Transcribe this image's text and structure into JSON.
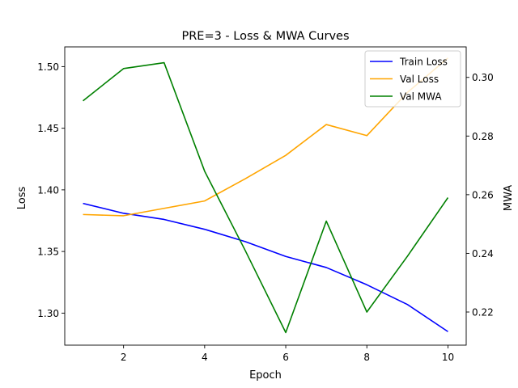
{
  "chart_data": {
    "type": "line",
    "title": "PRE=3 - Loss & MWA Curves",
    "xlabel": "Epoch",
    "ylabel": "Loss",
    "y2label": "MWA",
    "x": [
      1,
      2,
      3,
      4,
      5,
      6,
      7,
      8,
      9,
      10
    ],
    "x_ticks": [
      "2",
      "4",
      "6",
      "8",
      "10"
    ],
    "x_tick_values": [
      2,
      4,
      6,
      8,
      10
    ],
    "xlim": [
      0.55,
      10.45
    ],
    "ylim": [
      1.274,
      1.516
    ],
    "y_ticks": [
      "1.30",
      "1.35",
      "1.40",
      "1.45",
      "1.50"
    ],
    "y_tick_values": [
      1.3,
      1.35,
      1.4,
      1.45,
      1.5
    ],
    "y2lim": [
      0.2087,
      0.3104
    ],
    "y2_ticks": [
      "0.22",
      "0.24",
      "0.26",
      "0.28",
      "0.30"
    ],
    "y2_tick_values": [
      0.22,
      0.24,
      0.26,
      0.28,
      0.3
    ],
    "grid": false,
    "legend_position": "top-right",
    "series": [
      {
        "name": "Train Loss",
        "axis": "left",
        "color": "#0000ff",
        "values": [
          1.389,
          1.381,
          1.376,
          1.368,
          1.358,
          1.346,
          1.337,
          1.323,
          1.307,
          1.285
        ]
      },
      {
        "name": "Val Loss",
        "axis": "left",
        "color": "#ffa500",
        "values": [
          1.38,
          1.379,
          1.385,
          1.391,
          1.409,
          1.428,
          1.453,
          1.444,
          1.479,
          1.507
        ]
      },
      {
        "name": "Val MWA",
        "axis": "right",
        "color": "#008000",
        "values": [
          0.292,
          0.303,
          0.305,
          0.268,
          0.241,
          0.213,
          0.251,
          0.22,
          0.239,
          0.259
        ]
      }
    ]
  }
}
